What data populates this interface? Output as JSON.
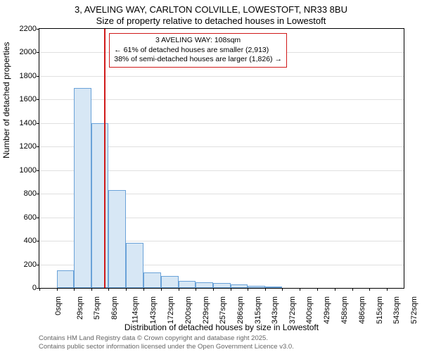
{
  "title_line1": "3, AVELING WAY, CARLTON COLVILLE, LOWESTOFT, NR33 8BU",
  "title_line2": "Size of property relative to detached houses in Lowestoft",
  "ylabel": "Number of detached properties",
  "xlabel": "Distribution of detached houses by size in Lowestoft",
  "attribution_line1": "Contains HM Land Registry data © Crown copyright and database right 2025.",
  "attribution_line2": "Contains public sector information licensed under the Open Government Licence v3.0.",
  "chart": {
    "type": "histogram",
    "ylim": [
      0,
      2200
    ],
    "ytick_step": 200,
    "yticks": [
      0,
      200,
      400,
      600,
      800,
      1000,
      1200,
      1400,
      1600,
      1800,
      2000,
      2200
    ],
    "xlim_sqm": [
      0,
      600
    ],
    "xtick_values": [
      0,
      29,
      57,
      86,
      114,
      143,
      172,
      200,
      229,
      257,
      286,
      315,
      343,
      372,
      400,
      429,
      458,
      486,
      515,
      543,
      572
    ],
    "xtick_suffix": "sqm",
    "bar_color": "#d7e7f5",
    "bar_border_color": "#6aa2d8",
    "grid_color": "#e0e0e0",
    "background_color": "#ffffff",
    "bins": [
      {
        "start": 29,
        "end": 57,
        "count": 150
      },
      {
        "start": 57,
        "end": 86,
        "count": 1700
      },
      {
        "start": 86,
        "end": 114,
        "count": 1400
      },
      {
        "start": 114,
        "end": 143,
        "count": 830
      },
      {
        "start": 143,
        "end": 172,
        "count": 380
      },
      {
        "start": 172,
        "end": 200,
        "count": 130
      },
      {
        "start": 200,
        "end": 229,
        "count": 100
      },
      {
        "start": 229,
        "end": 257,
        "count": 60
      },
      {
        "start": 257,
        "end": 286,
        "count": 50
      },
      {
        "start": 286,
        "end": 315,
        "count": 40
      },
      {
        "start": 315,
        "end": 343,
        "count": 30
      },
      {
        "start": 343,
        "end": 372,
        "count": 20
      },
      {
        "start": 372,
        "end": 400,
        "count": 15
      }
    ],
    "marker_value_sqm": 108,
    "marker_color": "#d01919",
    "annotation": {
      "line1": "3 AVELING WAY: 108sqm",
      "line2": "← 61% of detached houses are smaller (2,913)",
      "line3": "38% of semi-detached houses are larger (1,826) →",
      "border_color": "#d01919"
    }
  }
}
